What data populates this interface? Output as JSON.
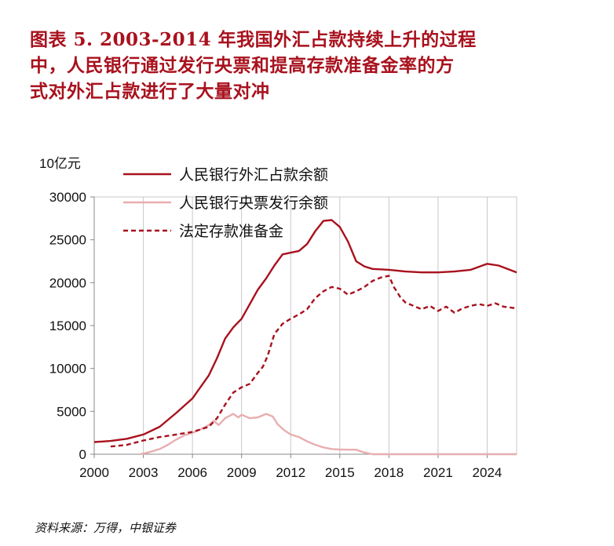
{
  "title_lines": [
    "图表 5.  2003-2014 年我国外汇占款持续上升的过程",
    "中，人民银行通过发行央票和提高存款准备金率的方",
    "式对外汇占款进行了大量对冲"
  ],
  "source": "资料来源：万得，中银证券",
  "colors": {
    "title": "#a8111d",
    "series_fx": "#a8111d",
    "series_bills": "#e8aeb0",
    "series_rrr": "#a8111d",
    "grid": "#c8c8c8"
  },
  "chart_data": {
    "type": "line",
    "unit_label": "10亿元",
    "ylim": [
      0,
      30000
    ],
    "yticks": [
      0,
      5000,
      10000,
      15000,
      20000,
      25000,
      30000
    ],
    "ytick_labels": [
      "0",
      "5000",
      "10000",
      "15000",
      "20000",
      "25000",
      "30000"
    ],
    "xlim": [
      2000,
      2025.8
    ],
    "xticks": [
      2000,
      2003,
      2006,
      2009,
      2012,
      2015,
      2018,
      2021,
      2024
    ],
    "xtick_labels": [
      "2000",
      "2003",
      "2006",
      "2009",
      "2012",
      "2015",
      "2018",
      "2021",
      "2024"
    ],
    "grid": "vertical",
    "legend_position": "top-left",
    "series": [
      {
        "name": "人民银行外汇占款余额",
        "style": "solid",
        "points": [
          [
            2000,
            1420
          ],
          [
            2001,
            1550
          ],
          [
            2002,
            1800
          ],
          [
            2003,
            2300
          ],
          [
            2004,
            3200
          ],
          [
            2005,
            4800
          ],
          [
            2006,
            6500
          ],
          [
            2007,
            9200
          ],
          [
            2007.5,
            11200
          ],
          [
            2008,
            13500
          ],
          [
            2008.5,
            14800
          ],
          [
            2009,
            15800
          ],
          [
            2009.5,
            17500
          ],
          [
            2010,
            19200
          ],
          [
            2010.5,
            20500
          ],
          [
            2011,
            22000
          ],
          [
            2011.5,
            23300
          ],
          [
            2012,
            23500
          ],
          [
            2012.5,
            23700
          ],
          [
            2013,
            24500
          ],
          [
            2013.5,
            26000
          ],
          [
            2014,
            27200
          ],
          [
            2014.5,
            27300
          ],
          [
            2015,
            26500
          ],
          [
            2015.5,
            24800
          ],
          [
            2016,
            22500
          ],
          [
            2016.5,
            21900
          ],
          [
            2017,
            21600
          ],
          [
            2018,
            21500
          ],
          [
            2019,
            21300
          ],
          [
            2020,
            21200
          ],
          [
            2021,
            21200
          ],
          [
            2022,
            21300
          ],
          [
            2023,
            21500
          ],
          [
            2024,
            22200
          ],
          [
            2024.7,
            22000
          ],
          [
            2025.8,
            21200
          ]
        ]
      },
      {
        "name": "人民银行央票发行余额",
        "style": "solid",
        "points": [
          [
            2002.8,
            0
          ],
          [
            2003.3,
            200
          ],
          [
            2004,
            600
          ],
          [
            2004.5,
            1100
          ],
          [
            2005,
            1700
          ],
          [
            2005.5,
            2200
          ],
          [
            2006,
            2500
          ],
          [
            2006.5,
            2900
          ],
          [
            2007,
            3400
          ],
          [
            2007.3,
            3900
          ],
          [
            2007.6,
            3400
          ],
          [
            2008,
            4200
          ],
          [
            2008.5,
            4700
          ],
          [
            2008.8,
            4300
          ],
          [
            2009,
            4600
          ],
          [
            2009.5,
            4200
          ],
          [
            2010,
            4300
          ],
          [
            2010.5,
            4700
          ],
          [
            2010.9,
            4400
          ],
          [
            2011.2,
            3500
          ],
          [
            2011.6,
            2800
          ],
          [
            2012,
            2300
          ],
          [
            2012.5,
            2000
          ],
          [
            2013,
            1500
          ],
          [
            2013.5,
            1100
          ],
          [
            2014,
            800
          ],
          [
            2014.5,
            600
          ],
          [
            2015,
            550
          ],
          [
            2015.5,
            530
          ],
          [
            2016,
            520
          ],
          [
            2016.5,
            200
          ],
          [
            2017,
            0
          ],
          [
            2025.8,
            0
          ]
        ]
      },
      {
        "name": "法定存款准备金",
        "style": "dashed",
        "points": [
          [
            2001,
            900
          ],
          [
            2002,
            1100
          ],
          [
            2003,
            1600
          ],
          [
            2004,
            2000
          ],
          [
            2005,
            2300
          ],
          [
            2006,
            2600
          ],
          [
            2007,
            3200
          ],
          [
            2007.5,
            4200
          ],
          [
            2008,
            5800
          ],
          [
            2008.5,
            7200
          ],
          [
            2009,
            7800
          ],
          [
            2009.5,
            8200
          ],
          [
            2010,
            9500
          ],
          [
            2010.3,
            10200
          ],
          [
            2010.6,
            11500
          ],
          [
            2011,
            14000
          ],
          [
            2011.5,
            15200
          ],
          [
            2012,
            15800
          ],
          [
            2012.5,
            16300
          ],
          [
            2013,
            16900
          ],
          [
            2013.5,
            18200
          ],
          [
            2014,
            19000
          ],
          [
            2014.5,
            19500
          ],
          [
            2015,
            19300
          ],
          [
            2015.5,
            18600
          ],
          [
            2016,
            19000
          ],
          [
            2016.5,
            19500
          ],
          [
            2017,
            20200
          ],
          [
            2017.5,
            20600
          ],
          [
            2018,
            20800
          ],
          [
            2018.3,
            19500
          ],
          [
            2018.7,
            18300
          ],
          [
            2019,
            17700
          ],
          [
            2019.5,
            17300
          ],
          [
            2020,
            16900
          ],
          [
            2020.5,
            17300
          ],
          [
            2021,
            16700
          ],
          [
            2021.5,
            17200
          ],
          [
            2022,
            16500
          ],
          [
            2022.5,
            17000
          ],
          [
            2023,
            17300
          ],
          [
            2023.5,
            17500
          ],
          [
            2024,
            17300
          ],
          [
            2024.5,
            17600
          ],
          [
            2025,
            17200
          ],
          [
            2025.8,
            17000
          ]
        ]
      }
    ]
  }
}
